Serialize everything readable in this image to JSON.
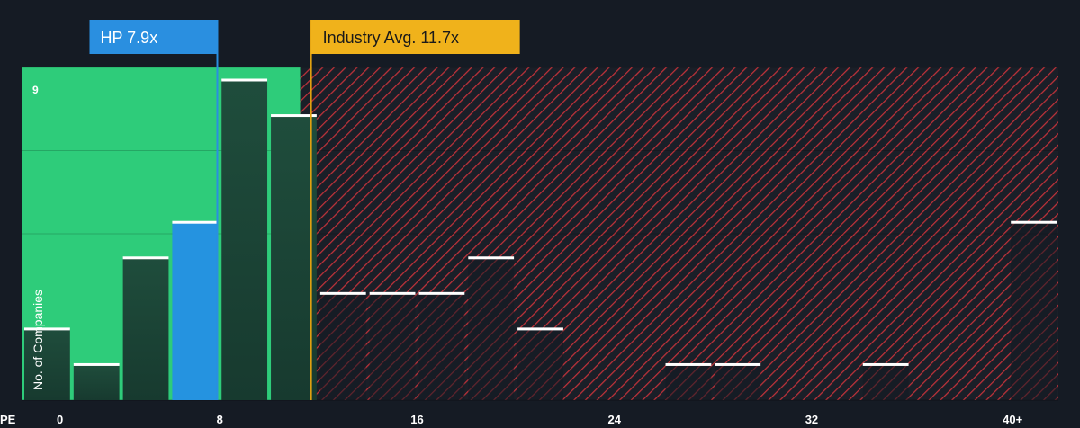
{
  "chart_data": {
    "type": "bar",
    "x_axis_label": "PE",
    "y_axis_label": "No. of Companies",
    "ylim": [
      0,
      9
    ],
    "y_max_label": "9",
    "x_ticks": [
      {
        "value": 0,
        "label": "0"
      },
      {
        "value": 8,
        "label": "8"
      },
      {
        "value": 16,
        "label": "16"
      },
      {
        "value": 24,
        "label": "24"
      },
      {
        "value": 32,
        "label": "32"
      },
      {
        "value": 40,
        "label": "40+"
      }
    ],
    "bin_width": 2,
    "bins": [
      {
        "x0": 0,
        "count": 2
      },
      {
        "x0": 2,
        "count": 1
      },
      {
        "x0": 4,
        "count": 4
      },
      {
        "x0": 6,
        "count": 5,
        "highlight": true
      },
      {
        "x0": 8,
        "count": 9
      },
      {
        "x0": 10,
        "count": 8
      },
      {
        "x0": 12,
        "count": 3
      },
      {
        "x0": 14,
        "count": 3
      },
      {
        "x0": 16,
        "count": 3
      },
      {
        "x0": 18,
        "count": 4
      },
      {
        "x0": 20,
        "count": 2
      },
      {
        "x0": 22,
        "count": 0
      },
      {
        "x0": 24,
        "count": 0
      },
      {
        "x0": 26,
        "count": 1
      },
      {
        "x0": 28,
        "count": 1
      },
      {
        "x0": 30,
        "count": 0
      },
      {
        "x0": 32,
        "count": 0
      },
      {
        "x0": 34,
        "count": 1
      },
      {
        "x0": 36,
        "count": 0
      },
      {
        "x0": 38,
        "count": 0
      },
      {
        "x0": 40,
        "count": 5
      }
    ],
    "company": {
      "label": "HP 7.9x",
      "value": 7.9
    },
    "industry_avg": {
      "label": "Industry Avg. 11.7x",
      "value": 11.7
    },
    "colors": {
      "background": "#151b24",
      "fair_zone": "#2ecc7a",
      "overvalued_hatch": "#c0323a",
      "bar_fill": "#1e4a3a",
      "bar_highlight": "#2593e0",
      "bar_top": "#ffffff",
      "company_callout": "#2a8fe0",
      "industry_callout": "#f0b21b",
      "industry_line": "#e0a010"
    }
  }
}
